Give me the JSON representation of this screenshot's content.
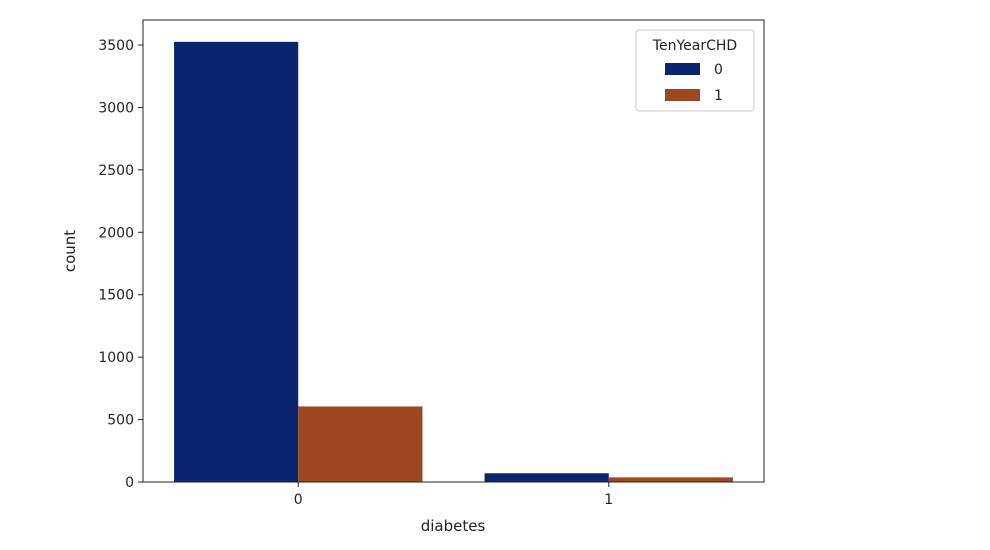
{
  "chart_data": {
    "type": "bar",
    "categories": [
      "0",
      "1"
    ],
    "series": [
      {
        "name": "0",
        "values": [
          3525,
          70
        ],
        "color": "#0b2470"
      },
      {
        "name": "1",
        "values": [
          605,
          37
        ],
        "color": "#9c4720"
      }
    ],
    "xlabel": "diabetes",
    "ylabel": "count",
    "ylim": [
      0,
      3700
    ],
    "yticks": [
      0,
      500,
      1000,
      1500,
      2000,
      2500,
      3000,
      3500
    ],
    "legend": {
      "title": "TenYearCHD",
      "placement": "top-right"
    },
    "grid": false
  }
}
